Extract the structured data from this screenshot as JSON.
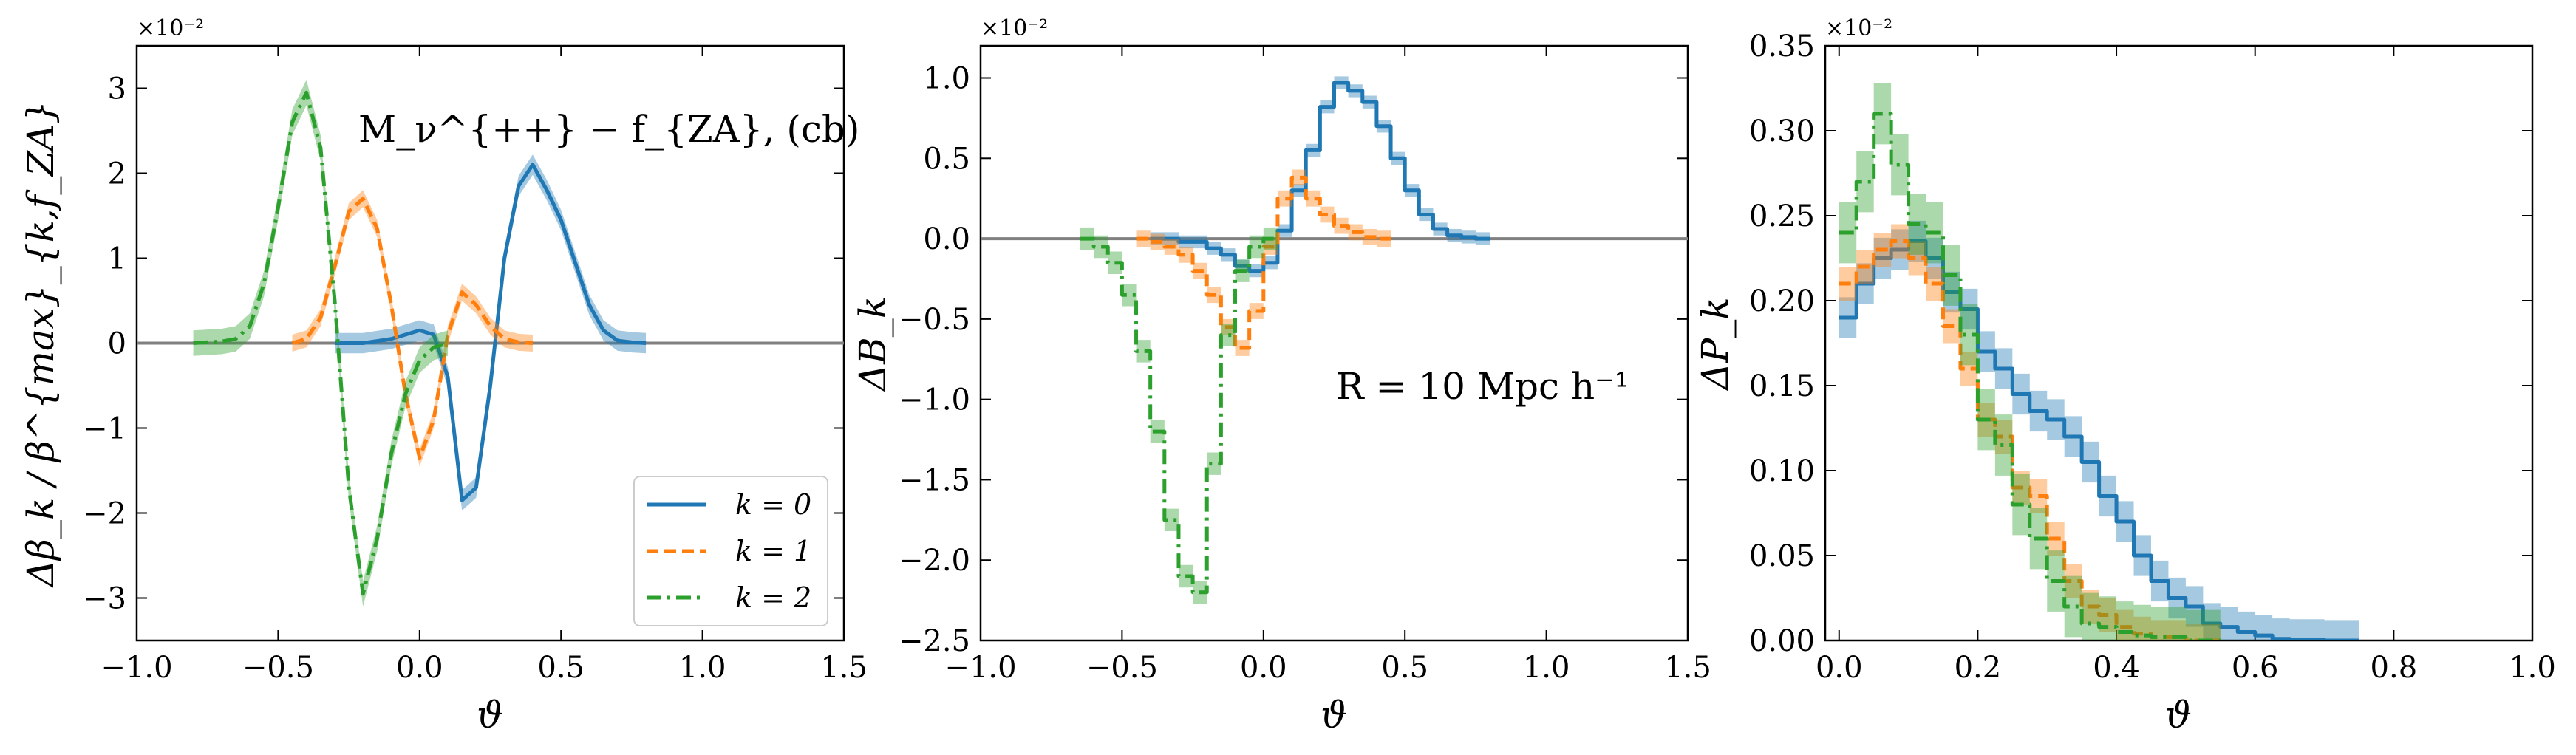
{
  "colors": {
    "k0": "#1f77b4",
    "k1": "#ff7f0e",
    "k2": "#2ca02c",
    "zero": "#808080"
  },
  "chart_data": [
    {
      "type": "line",
      "panel": "left",
      "annotation": "M_ν^{++} − f_{ZA}, (cb)",
      "xlabel": "ϑ",
      "ylabel": "Δβ_k / β^{max}_{k,f_ZA}",
      "multiplier": "×10⁻²",
      "xlim": [
        -1.0,
        1.5
      ],
      "ylim": [
        -3.5,
        3.5
      ],
      "xticks": [
        -1.0,
        -0.5,
        0.0,
        0.5,
        1.0,
        1.5
      ],
      "xtick_labels": [
        "−1.0",
        "−0.5",
        "0.0",
        "0.5",
        "1.0",
        "1.5"
      ],
      "yticks": [
        -3,
        -2,
        -1,
        0,
        1,
        2,
        3
      ],
      "ytick_labels": [
        "−3",
        "−2",
        "−1",
        "0",
        "1",
        "2",
        "3"
      ],
      "legend": {
        "position": "lower-right",
        "entries": [
          "k = 0",
          "k = 1",
          "k = 2"
        ]
      },
      "series": [
        {
          "name": "k = 0",
          "style": "solid",
          "band": 0.12,
          "x": [
            -0.3,
            -0.2,
            -0.1,
            -0.05,
            0.0,
            0.05,
            0.1,
            0.15,
            0.2,
            0.25,
            0.3,
            0.35,
            0.4,
            0.45,
            0.5,
            0.55,
            0.6,
            0.65,
            0.7,
            0.75,
            0.8
          ],
          "y": [
            0,
            0,
            0.05,
            0.1,
            0.15,
            0.1,
            -0.4,
            -1.85,
            -1.7,
            -0.5,
            1.0,
            1.85,
            2.1,
            1.8,
            1.45,
            0.95,
            0.45,
            0.15,
            0.03,
            0.01,
            0
          ]
        },
        {
          "name": "k = 1",
          "style": "dashed",
          "band": 0.1,
          "x": [
            -0.45,
            -0.4,
            -0.35,
            -0.3,
            -0.25,
            -0.2,
            -0.15,
            -0.1,
            -0.05,
            0.0,
            0.05,
            0.1,
            0.15,
            0.2,
            0.25,
            0.3,
            0.35,
            0.4
          ],
          "y": [
            0,
            0.05,
            0.3,
            0.9,
            1.55,
            1.7,
            1.35,
            0.45,
            -0.6,
            -1.35,
            -0.9,
            0.1,
            0.6,
            0.45,
            0.2,
            0.05,
            0.01,
            0
          ]
        },
        {
          "name": "k = 2",
          "style": "dashdot",
          "band": 0.15,
          "x": [
            -0.8,
            -0.7,
            -0.65,
            -0.6,
            -0.55,
            -0.5,
            -0.45,
            -0.4,
            -0.35,
            -0.3,
            -0.25,
            -0.2,
            -0.15,
            -0.1,
            -0.05,
            0.0,
            0.05,
            0.1
          ],
          "y": [
            0,
            0.02,
            0.05,
            0.2,
            0.7,
            1.6,
            2.6,
            2.95,
            2.3,
            0.5,
            -1.7,
            -2.95,
            -2.3,
            -1.3,
            -0.6,
            -0.2,
            -0.05,
            0
          ]
        }
      ]
    },
    {
      "type": "line",
      "panel": "middle",
      "annotation": "R = 10 Mpc h⁻¹",
      "xlabel": "ϑ",
      "ylabel": "ΔB_k",
      "multiplier": "×10⁻²",
      "xlim": [
        -1.0,
        1.5
      ],
      "ylim": [
        -2.5,
        1.2
      ],
      "xticks": [
        -1.0,
        -0.5,
        0.0,
        0.5,
        1.0,
        1.5
      ],
      "xtick_labels": [
        "−1.0",
        "−0.5",
        "0.0",
        "0.5",
        "1.0",
        "1.5"
      ],
      "yticks": [
        -2.5,
        -2.0,
        -1.5,
        -1.0,
        -0.5,
        0.0,
        0.5,
        1.0
      ],
      "ytick_labels": [
        "−2.5",
        "−2.0",
        "−1.5",
        "−1.0",
        "−0.5",
        "0.0",
        "0.5",
        "1.0"
      ],
      "series": [
        {
          "name": "k = 0",
          "style": "solid",
          "band": 0.04,
          "x": [
            -0.4,
            -0.3,
            -0.2,
            -0.15,
            -0.1,
            -0.05,
            0.0,
            0.05,
            0.1,
            0.15,
            0.2,
            0.25,
            0.3,
            0.35,
            0.4,
            0.45,
            0.5,
            0.55,
            0.6,
            0.65,
            0.7,
            0.75
          ],
          "y": [
            0,
            -0.02,
            -0.06,
            -0.1,
            -0.17,
            -0.2,
            -0.15,
            0.05,
            0.3,
            0.55,
            0.82,
            0.97,
            0.92,
            0.85,
            0.7,
            0.5,
            0.3,
            0.15,
            0.06,
            0.02,
            0.01,
            0
          ]
        },
        {
          "name": "k = 1",
          "style": "dashed",
          "band": 0.05,
          "x": [
            -0.45,
            -0.4,
            -0.35,
            -0.3,
            -0.25,
            -0.2,
            -0.15,
            -0.1,
            -0.05,
            0.0,
            0.05,
            0.1,
            0.15,
            0.2,
            0.25,
            0.3,
            0.35,
            0.4
          ],
          "y": [
            0,
            -0.02,
            -0.05,
            -0.1,
            -0.2,
            -0.35,
            -0.55,
            -0.68,
            -0.45,
            -0.05,
            0.25,
            0.38,
            0.25,
            0.15,
            0.08,
            0.04,
            0.01,
            0
          ]
        },
        {
          "name": "k = 2",
          "style": "dashdot",
          "band": 0.07,
          "x": [
            -0.65,
            -0.6,
            -0.55,
            -0.5,
            -0.45,
            -0.4,
            -0.35,
            -0.3,
            -0.25,
            -0.2,
            -0.15,
            -0.1,
            -0.05,
            0.0
          ],
          "y": [
            0,
            -0.05,
            -0.15,
            -0.35,
            -0.7,
            -1.2,
            -1.75,
            -2.1,
            -2.2,
            -1.4,
            -0.6,
            -0.2,
            -0.05,
            0
          ]
        }
      ]
    },
    {
      "type": "line",
      "panel": "right",
      "xlabel": "ϑ",
      "ylabel": "ΔP_k",
      "multiplier": "×10⁻²",
      "xlim": [
        -0.02,
        1.0
      ],
      "ylim": [
        0.0,
        0.35
      ],
      "xticks": [
        0.0,
        0.2,
        0.4,
        0.6,
        0.8,
        1.0
      ],
      "xtick_labels": [
        "0.0",
        "0.2",
        "0.4",
        "0.6",
        "0.8",
        "1.0"
      ],
      "yticks": [
        0.0,
        0.05,
        0.1,
        0.15,
        0.2,
        0.25,
        0.3,
        0.35
      ],
      "ytick_labels": [
        "0.00",
        "0.05",
        "0.10",
        "0.15",
        "0.20",
        "0.25",
        "0.30",
        "0.35"
      ],
      "series": [
        {
          "name": "k = 0",
          "style": "solid",
          "band": 0.012,
          "x": [
            0.0,
            0.025,
            0.05,
            0.075,
            0.1,
            0.125,
            0.15,
            0.175,
            0.2,
            0.225,
            0.25,
            0.275,
            0.3,
            0.325,
            0.35,
            0.375,
            0.4,
            0.425,
            0.45,
            0.475,
            0.5,
            0.525,
            0.55,
            0.575,
            0.6,
            0.625,
            0.65,
            0.7
          ],
          "y": [
            0.19,
            0.21,
            0.225,
            0.23,
            0.235,
            0.225,
            0.205,
            0.195,
            0.17,
            0.16,
            0.145,
            0.135,
            0.13,
            0.12,
            0.105,
            0.085,
            0.07,
            0.05,
            0.035,
            0.025,
            0.02,
            0.01,
            0.008,
            0.005,
            0.003,
            0.001,
            0.0005,
            0.0
          ]
        },
        {
          "name": "k = 1",
          "style": "dashed",
          "band": 0.01,
          "x": [
            0.0,
            0.025,
            0.05,
            0.075,
            0.1,
            0.125,
            0.15,
            0.175,
            0.2,
            0.225,
            0.25,
            0.275,
            0.3,
            0.325,
            0.35,
            0.375,
            0.4,
            0.425,
            0.45,
            0.5
          ],
          "y": [
            0.21,
            0.22,
            0.23,
            0.235,
            0.225,
            0.21,
            0.185,
            0.16,
            0.13,
            0.12,
            0.09,
            0.085,
            0.06,
            0.035,
            0.02,
            0.015,
            0.008,
            0.004,
            0.002,
            0.0
          ]
        },
        {
          "name": "k = 2",
          "style": "dashdot",
          "band": 0.018,
          "x": [
            0.0,
            0.025,
            0.05,
            0.075,
            0.1,
            0.125,
            0.15,
            0.175,
            0.2,
            0.225,
            0.25,
            0.275,
            0.3,
            0.325,
            0.35,
            0.375,
            0.4,
            0.425,
            0.45,
            0.5
          ],
          "y": [
            0.24,
            0.27,
            0.31,
            0.28,
            0.245,
            0.24,
            0.215,
            0.18,
            0.13,
            0.115,
            0.08,
            0.06,
            0.035,
            0.02,
            0.01,
            0.008,
            0.005,
            0.003,
            0.002,
            0.0
          ]
        }
      ]
    }
  ]
}
